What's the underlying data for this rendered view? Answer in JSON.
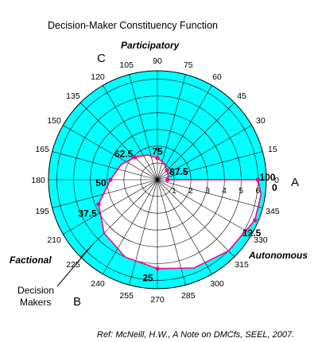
{
  "chart_data": {
    "type": "polar-line",
    "title": "Decision-Maker Constituency Function",
    "reference": "Ref: McNeill, H.W., A Note on DMCfs, SEEL, 2007.",
    "angle_ticks": [
      "0",
      "15",
      "30",
      "45",
      "60",
      "75",
      "90",
      "105",
      "120",
      "135",
      "150",
      "165",
      "180",
      "195",
      "210",
      "225",
      "240",
      "255",
      "270",
      "285",
      "300",
      "315",
      "330",
      "345"
    ],
    "radial_ticks": [
      "1",
      "2",
      "3",
      "4",
      "5",
      "6"
    ],
    "rmax": 6.5,
    "fill_color": "#00ffff",
    "curve_color": "#ff0080",
    "points": [
      {
        "label": "0",
        "angle": 0,
        "r": 0.6
      },
      {
        "label": "12.5",
        "angle": 337.5,
        "r": 6.3
      },
      {
        "label": "25",
        "angle": 270,
        "r": 5.3
      },
      {
        "label": "37.5",
        "angle": 202.5,
        "r": 3.8
      },
      {
        "label": "50",
        "angle": 180,
        "r": 2.8
      },
      {
        "label": "62.5",
        "angle": 135,
        "r": 1.9
      },
      {
        "label": "75",
        "angle": 90,
        "r": 1.3
      },
      {
        "label": "87.5",
        "angle": 45,
        "r": 0.8
      },
      {
        "label": "100",
        "angle": 0,
        "r": 6.0
      }
    ],
    "curve_samples": [
      [
        0,
        0.6
      ],
      [
        22.5,
        0.7
      ],
      [
        45,
        0.8
      ],
      [
        67.5,
        1.05
      ],
      [
        90,
        1.3
      ],
      [
        112.5,
        1.6
      ],
      [
        135,
        1.9
      ],
      [
        157.5,
        2.35
      ],
      [
        180,
        2.8
      ],
      [
        202.5,
        3.8
      ],
      [
        225,
        4.5
      ],
      [
        247.5,
        5.0
      ],
      [
        270,
        5.3
      ],
      [
        292.5,
        5.7
      ],
      [
        315,
        6.0
      ],
      [
        337.5,
        6.3
      ],
      [
        352,
        6.25
      ],
      [
        360,
        6.0
      ]
    ],
    "regions": [
      {
        "name": "Participatory"
      },
      {
        "name": "Factional"
      },
      {
        "name": "Autonomous"
      }
    ],
    "corner_labels": [
      "A",
      "B",
      "C"
    ],
    "annotation": [
      "Decision",
      "Makers"
    ]
  }
}
